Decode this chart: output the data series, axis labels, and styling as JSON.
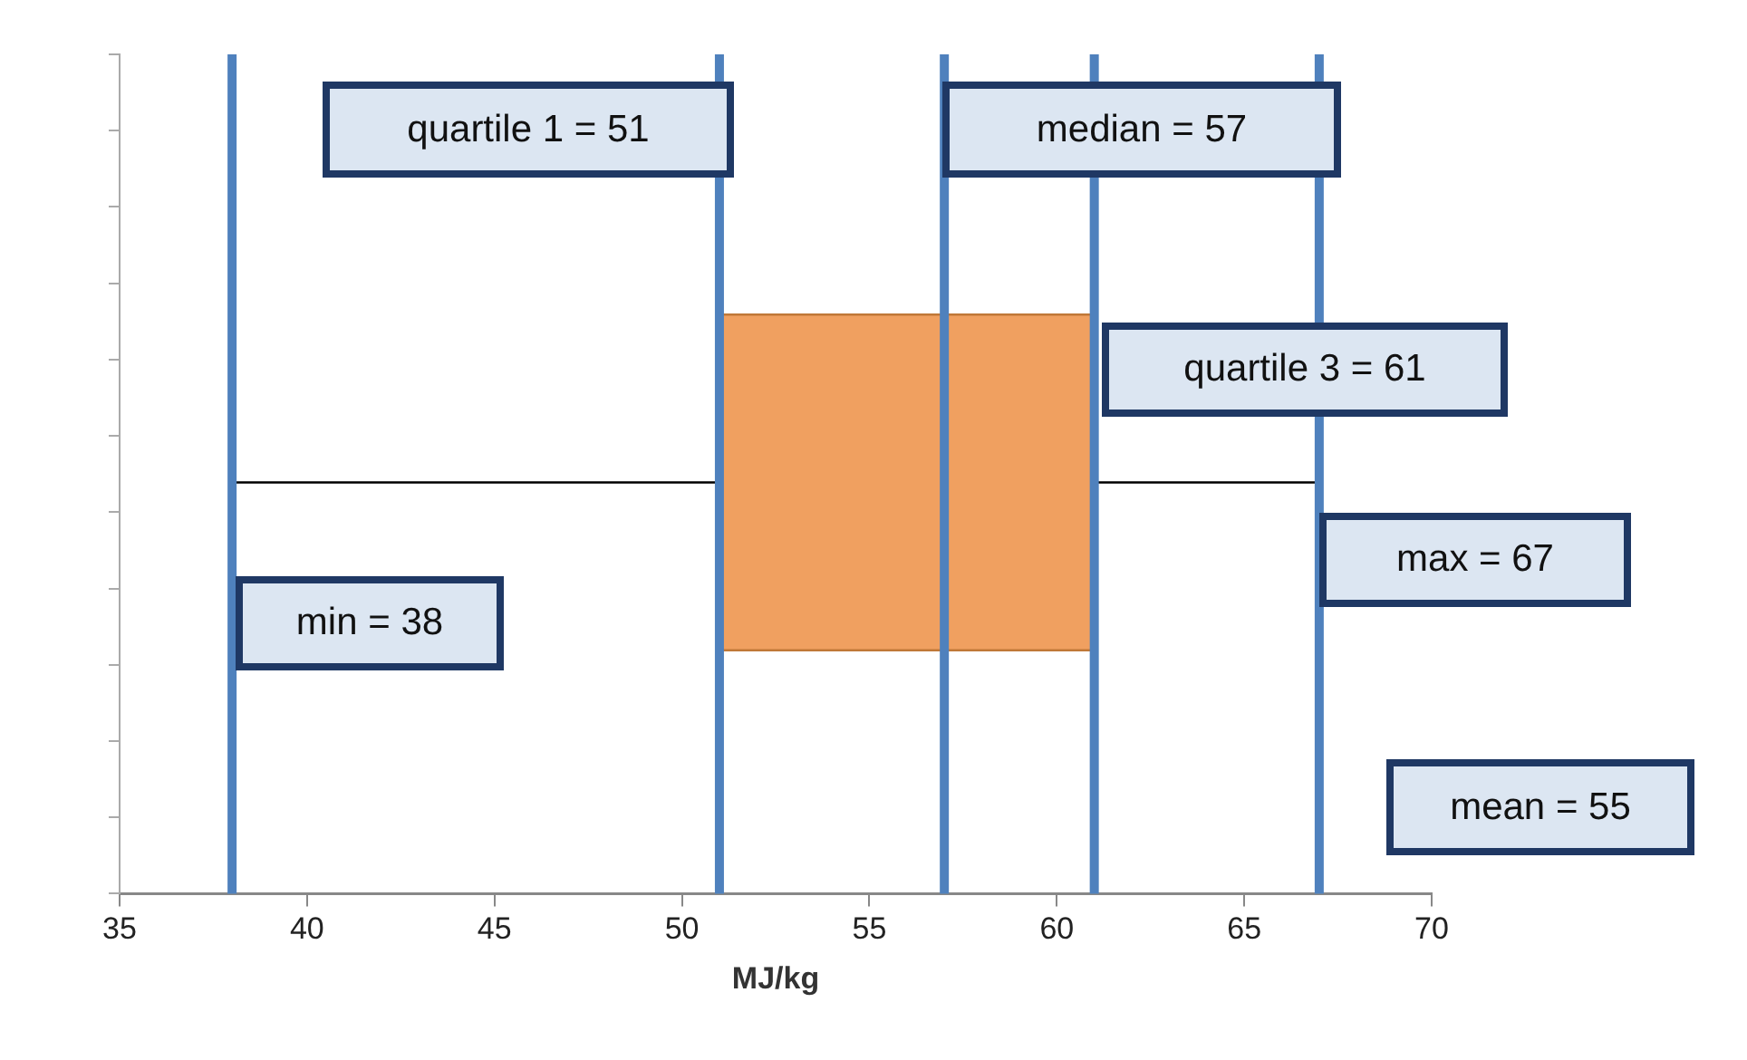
{
  "chart_data": {
    "type": "box",
    "orientation": "horizontal",
    "xlabel": "MJ/kg",
    "xlim": [
      35,
      70
    ],
    "xticks": [
      35,
      40,
      45,
      50,
      55,
      60,
      65,
      70
    ],
    "boxes": [
      {
        "low": 38,
        "q1": 51,
        "median": 57,
        "q3": 61,
        "high": 67
      }
    ],
    "color": "#f0a060",
    "ref_lines": [
      {
        "axis": "x",
        "value": 38,
        "label": "min = 38",
        "color": "#4f81bd"
      },
      {
        "axis": "x",
        "value": 51,
        "label": "quartile 1 = 51",
        "color": "#4f81bd"
      },
      {
        "axis": "x",
        "value": 57,
        "label": "median = 57",
        "color": "#4f81bd"
      },
      {
        "axis": "x",
        "value": 61,
        "label": "quartile 3 = 61",
        "color": "#4f81bd"
      },
      {
        "axis": "x",
        "value": 67,
        "label": "max = 67",
        "color": "#4f81bd"
      }
    ],
    "annotations": [
      "mean = 55"
    ],
    "grid": false,
    "legend": false,
    "tick_labels": "x"
  }
}
